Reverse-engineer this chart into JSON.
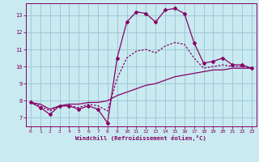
{
  "xlabel": "Windchill (Refroidissement éolien,°C)",
  "bg_color": "#c8eaf0",
  "grid_color": "#a0c8d8",
  "line_color": "#880066",
  "xlim": [
    -0.5,
    23.5
  ],
  "ylim": [
    6.5,
    13.7
  ],
  "yticks": [
    7,
    8,
    9,
    10,
    11,
    12,
    13
  ],
  "xticks": [
    0,
    1,
    2,
    3,
    4,
    5,
    6,
    7,
    8,
    9,
    10,
    11,
    12,
    13,
    14,
    15,
    16,
    17,
    18,
    19,
    20,
    21,
    22,
    23
  ],
  "curve1_x": [
    0,
    1,
    2,
    3,
    4,
    5,
    6,
    7,
    8,
    9,
    10,
    11,
    12,
    13,
    14,
    15,
    16,
    17,
    18,
    19,
    20,
    21,
    22,
    23
  ],
  "curve1_y": [
    7.9,
    7.6,
    7.2,
    7.7,
    7.7,
    7.5,
    7.7,
    7.5,
    6.7,
    10.5,
    12.6,
    13.2,
    13.1,
    12.6,
    13.3,
    13.4,
    13.1,
    11.4,
    10.2,
    10.3,
    10.5,
    10.1,
    10.1,
    9.9
  ],
  "curve2_x": [
    0,
    1,
    2,
    3,
    4,
    5,
    6,
    7,
    8,
    9,
    10,
    11,
    12,
    13,
    14,
    15,
    16,
    17,
    18,
    19,
    20,
    21,
    22,
    23
  ],
  "curve2_y": [
    7.9,
    7.8,
    7.5,
    7.7,
    7.8,
    7.8,
    7.9,
    7.9,
    8.0,
    8.3,
    8.5,
    8.7,
    8.9,
    9.0,
    9.2,
    9.4,
    9.5,
    9.6,
    9.7,
    9.8,
    9.8,
    9.9,
    9.9,
    9.9
  ],
  "curve3_x": [
    0,
    1,
    2,
    3,
    4,
    5,
    6,
    7,
    8,
    9,
    10,
    11,
    12,
    13,
    14,
    15,
    16,
    17,
    18,
    19,
    20,
    21,
    22,
    23
  ],
  "curve3_y": [
    7.9,
    7.7,
    7.4,
    7.7,
    7.7,
    7.6,
    7.8,
    7.7,
    7.4,
    9.3,
    10.5,
    10.9,
    11.0,
    10.8,
    11.2,
    11.4,
    11.3,
    10.5,
    9.9,
    10.0,
    10.1,
    10.0,
    10.0,
    9.9
  ]
}
